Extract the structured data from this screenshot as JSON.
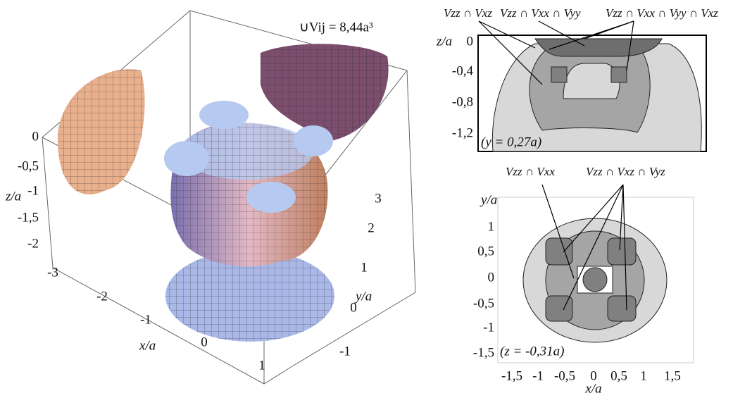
{
  "left_panel": {
    "title": "∪Vij = 8,44a³",
    "z_label": "z/a",
    "x_label": "x/a",
    "y_label": "y/a",
    "z_ticks": [
      "0",
      "-0,5",
      "-1",
      "-1,5",
      "-2"
    ],
    "x_ticks": [
      "-3",
      "-2",
      "-1",
      "0",
      "1"
    ],
    "y_ticks": [
      "3",
      "2",
      "1",
      "0",
      "-1"
    ]
  },
  "top_right_panel": {
    "annotations": [
      "Vzz ∩ Vxz",
      "Vzz ∩ Vxx ∩ Vyy",
      "Vzz ∩ Vxx ∩ Vyy ∩ Vxz"
    ],
    "z_label": "z/a",
    "z_ticks": [
      "0",
      "-0,4",
      "-0,8",
      "-1,2"
    ],
    "section": "(y = 0,27a)"
  },
  "bottom_right_panel": {
    "annotations": [
      "Vzz ∩ Vxx",
      "Vzz ∩ Vxz ∩ Vyz"
    ],
    "y_label": "y/a",
    "x_label": "x/a",
    "y_ticks": [
      "1",
      "0,5",
      "0",
      "-0,5",
      "-1",
      "-1,5"
    ],
    "x_ticks": [
      "-1,5",
      "-1",
      "-0,5",
      "0",
      "0,5",
      "1",
      "1,5"
    ],
    "section": "(z = -0,31a)"
  }
}
